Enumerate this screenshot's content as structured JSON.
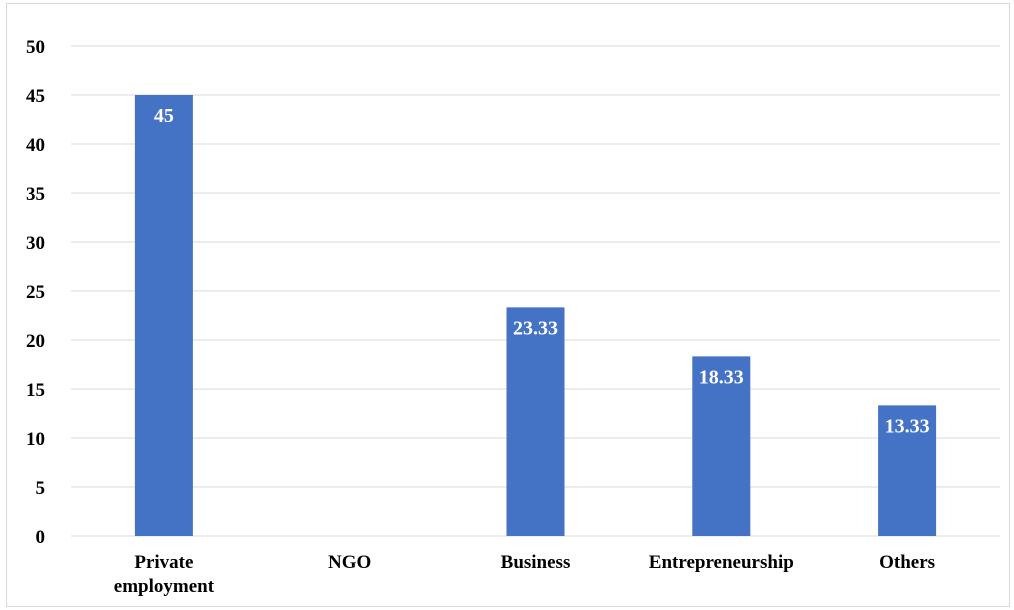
{
  "chart_data": {
    "type": "bar",
    "title": "",
    "xlabel": "",
    "ylabel": "",
    "categories": [
      [
        "Private",
        "employment"
      ],
      [
        "NGO"
      ],
      [
        "Business"
      ],
      [
        "Entrepreneurship"
      ],
      [
        "Others"
      ]
    ],
    "values": [
      45,
      0,
      23.33,
      18.33,
      13.33
    ],
    "data_labels": [
      "45",
      "",
      "23.33",
      "18.33",
      "13.33"
    ],
    "ylim": [
      0,
      50
    ],
    "yticks": [
      0,
      5,
      10,
      15,
      20,
      25,
      30,
      35,
      40,
      45,
      50
    ],
    "grid": true,
    "legend": "none",
    "colors": {
      "bar": "#4472c4",
      "grid": "#d9d9d9",
      "data_label": "#ffffff"
    }
  }
}
